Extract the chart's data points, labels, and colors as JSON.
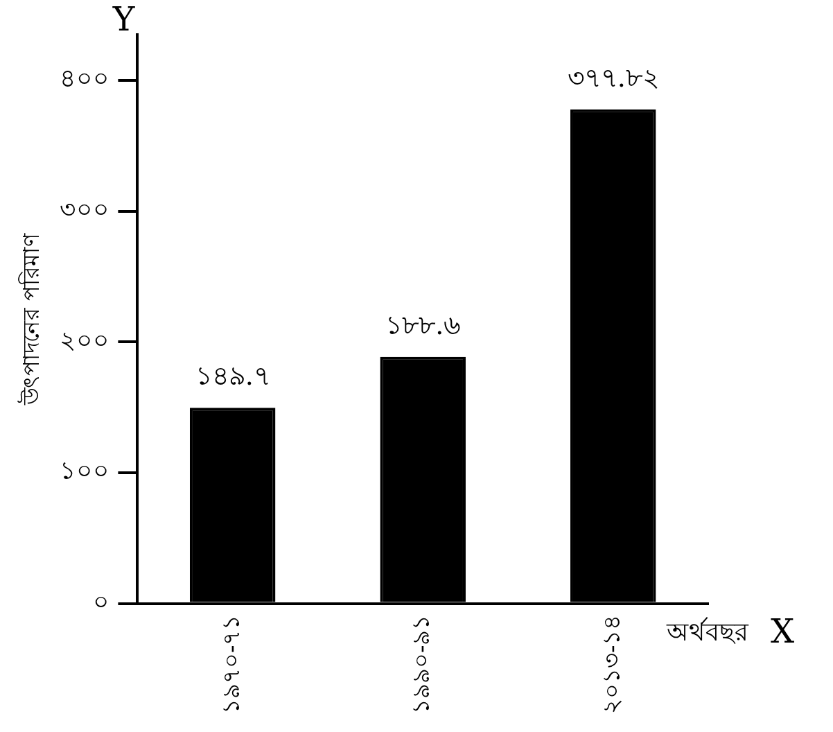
{
  "chart_data": {
    "type": "bar",
    "ylabel": "উৎপাদনের পরিমাণ",
    "xlabel": "অর্থবছর",
    "categories": [
      "১৯৭০-৭১",
      "১৯৯০-৯১",
      "২০১৩-১৪"
    ],
    "values": [
      149.7,
      188.6,
      377.82
    ],
    "value_labels": [
      "১৪৯.৭",
      "১৮৮.৬",
      "৩৭৭.৮২"
    ],
    "color": "#000000",
    "ylim": [
      0,
      435
    ],
    "yticks": [
      {
        "value": 0,
        "label": "০"
      },
      {
        "value": 100,
        "label": "১০০"
      },
      {
        "value": 200,
        "label": "২০০"
      },
      {
        "value": 300,
        "label": "৩০০"
      },
      {
        "value": 400,
        "label": "৪০০"
      }
    ],
    "annotations": [
      "Y",
      "X"
    ],
    "grid": false,
    "legend": false
  }
}
